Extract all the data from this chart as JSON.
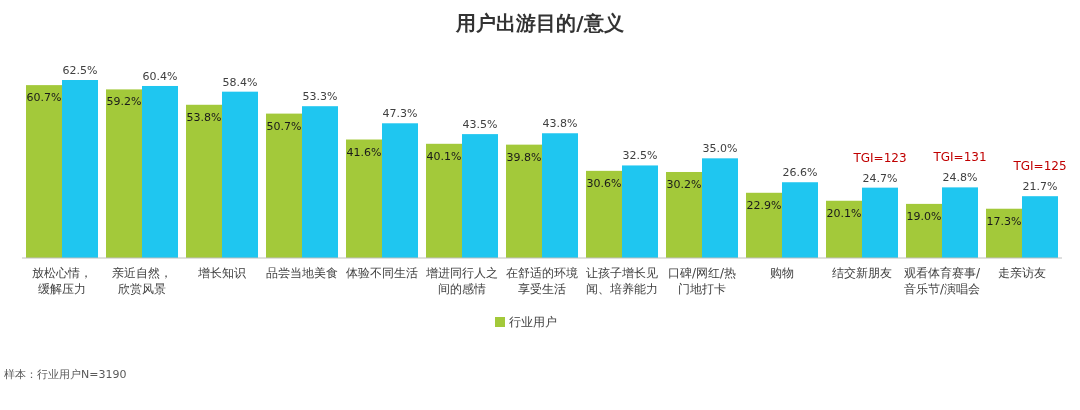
{
  "chart_data": {
    "type": "bar",
    "title": "用户出游目的/意义",
    "categories": [
      "放松心情，缓解压力",
      "亲近自然，欣赏风景",
      "增长知识",
      "品尝当地美食",
      "体验不同生活",
      "增进同行人之间的感情",
      "在舒适的环境享受生活",
      "让孩子增长见闻、培养能力",
      "口碑/网红/热门地打卡",
      "购物",
      "结交新朋友",
      "观看体育赛事/音乐节/演唱会",
      "走亲访友"
    ],
    "series": [
      {
        "name": "行业用户",
        "color": "#a3c93a",
        "values": [
          60.7,
          59.2,
          53.8,
          50.7,
          41.6,
          40.1,
          39.8,
          30.6,
          30.2,
          22.9,
          20.1,
          19.0,
          17.3
        ],
        "value_labels": [
          "60.7%",
          "59.2%",
          "53.8%",
          "50.7%",
          "41.6%",
          "40.1%",
          "39.8%",
          "30.6%",
          "30.2%",
          "22.9%",
          "20.1%",
          "19.0%",
          "17.3%"
        ]
      },
      {
        "color": "#1fc6f0",
        "values": [
          62.5,
          60.4,
          58.4,
          53.3,
          47.3,
          43.5,
          43.8,
          32.5,
          35.0,
          26.6,
          24.7,
          24.8,
          21.7
        ],
        "value_labels": [
          "62.5%",
          "60.4%",
          "58.4%",
          "53.3%",
          "47.3%",
          "43.5%",
          "43.8%",
          "32.5%",
          "35.0%",
          "26.6%",
          "24.7%",
          "24.8%",
          "21.7%"
        ]
      }
    ],
    "legend": "bottom",
    "annotations": [
      {
        "text": "TGI=123",
        "x": "结交新朋友",
        "y": 24.7
      },
      {
        "text": "TGI=131",
        "x": "观看体育赛事/音乐节/演唱会",
        "y": 24.8
      },
      {
        "text": "TGI=125",
        "x": "走亲访友",
        "y": 21.7
      },
      "样本：行业用户N=3190"
    ]
  }
}
